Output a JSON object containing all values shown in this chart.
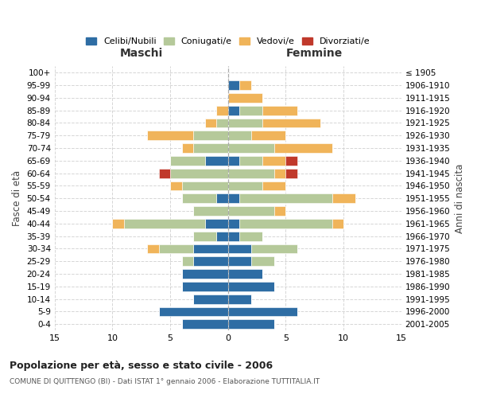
{
  "age_groups": [
    "0-4",
    "5-9",
    "10-14",
    "15-19",
    "20-24",
    "25-29",
    "30-34",
    "35-39",
    "40-44",
    "45-49",
    "50-54",
    "55-59",
    "60-64",
    "65-69",
    "70-74",
    "75-79",
    "80-84",
    "85-89",
    "90-94",
    "95-99",
    "100+"
  ],
  "birth_years": [
    "2001-2005",
    "1996-2000",
    "1991-1995",
    "1986-1990",
    "1981-1985",
    "1976-1980",
    "1971-1975",
    "1966-1970",
    "1961-1965",
    "1956-1960",
    "1951-1955",
    "1946-1950",
    "1941-1945",
    "1936-1940",
    "1931-1935",
    "1926-1930",
    "1921-1925",
    "1916-1920",
    "1911-1915",
    "1906-1910",
    "≤ 1905"
  ],
  "maschi": {
    "celibi": [
      4,
      6,
      3,
      4,
      4,
      3,
      3,
      1,
      2,
      0,
      1,
      0,
      0,
      2,
      0,
      0,
      0,
      0,
      0,
      0,
      0
    ],
    "coniugati": [
      0,
      0,
      0,
      0,
      0,
      1,
      3,
      2,
      7,
      3,
      3,
      4,
      5,
      3,
      3,
      3,
      1,
      0,
      0,
      0,
      0
    ],
    "vedovi": [
      0,
      0,
      0,
      0,
      0,
      0,
      1,
      0,
      1,
      0,
      0,
      1,
      0,
      0,
      1,
      4,
      1,
      1,
      0,
      0,
      0
    ],
    "divorziati": [
      0,
      0,
      0,
      0,
      0,
      0,
      0,
      0,
      0,
      0,
      0,
      0,
      1,
      0,
      0,
      0,
      0,
      0,
      0,
      0,
      0
    ]
  },
  "femmine": {
    "nubili": [
      4,
      6,
      2,
      4,
      3,
      2,
      2,
      1,
      1,
      0,
      1,
      0,
      0,
      1,
      0,
      0,
      0,
      1,
      0,
      1,
      0
    ],
    "coniugate": [
      0,
      0,
      0,
      0,
      0,
      2,
      4,
      2,
      8,
      4,
      8,
      3,
      4,
      2,
      4,
      2,
      3,
      2,
      0,
      0,
      0
    ],
    "vedove": [
      0,
      0,
      0,
      0,
      0,
      0,
      0,
      0,
      1,
      1,
      2,
      2,
      1,
      2,
      5,
      3,
      5,
      3,
      3,
      1,
      0
    ],
    "divorziate": [
      0,
      0,
      0,
      0,
      0,
      0,
      0,
      0,
      0,
      0,
      0,
      0,
      1,
      1,
      0,
      0,
      0,
      0,
      0,
      0,
      0
    ]
  },
  "colors": {
    "celibi": "#2e6da4",
    "coniugati": "#b5c99a",
    "vedovi": "#f0b45a",
    "divorziati": "#c0392b"
  },
  "xlim": 15,
  "title": "Popolazione per età, sesso e stato civile - 2006",
  "subtitle": "COMUNE DI QUITTENGO (BI) - Dati ISTAT 1° gennaio 2006 - Elaborazione TUTTITALIA.IT",
  "legend_labels": [
    "Celibi/Nubili",
    "Coniugati/e",
    "Vedovi/e",
    "Divorziati/e"
  ],
  "ylabel_left": "Fasce di età",
  "ylabel_right": "Anni di nascita",
  "xlabel_left": "Maschi",
  "xlabel_right": "Femmine",
  "bg_color": "#ffffff",
  "grid_color": "#cccccc"
}
